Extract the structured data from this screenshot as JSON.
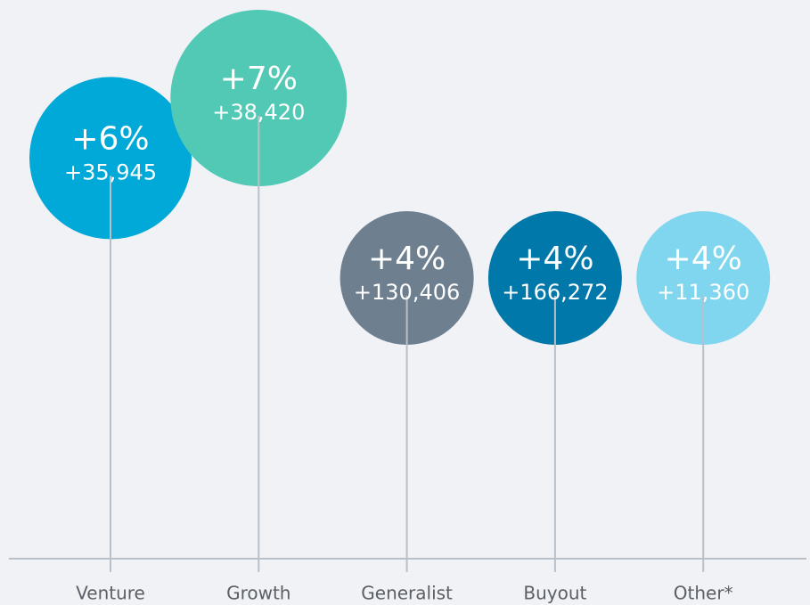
{
  "chart_data": {
    "type": "bubble",
    "categories": [
      "Venture",
      "Growth",
      "Generalist",
      "Buyout",
      "Other*"
    ],
    "values": [
      6,
      7,
      4,
      4,
      4
    ],
    "value_labels": [
      "+6%",
      "+7%",
      "+4%",
      "+4%",
      "+4%"
    ],
    "counts": [
      35945,
      38420,
      130406,
      166272,
      11360
    ],
    "count_labels": [
      "+35,945",
      "+38,420",
      "+130,406",
      "+166,272",
      "+11,360"
    ],
    "colors": [
      "#00a9d7",
      "#52c9b5",
      "#6e7f8f",
      "#0078a9",
      "#7fd6ee"
    ]
  }
}
